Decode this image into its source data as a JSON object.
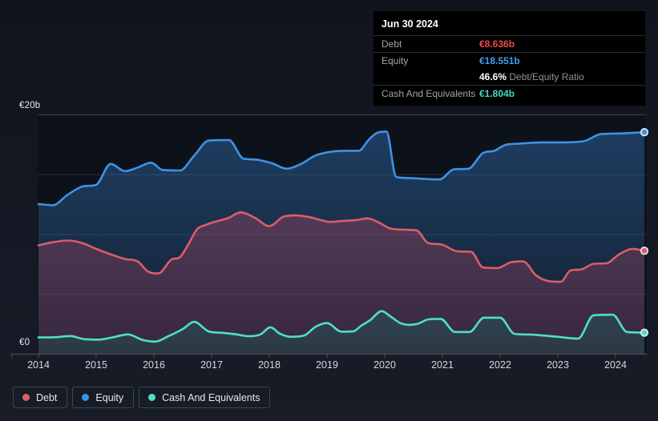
{
  "tooltip": {
    "date": "Jun 30 2024",
    "debt": {
      "label": "Debt",
      "value": "€8.636b"
    },
    "equity": {
      "label": "Equity",
      "value": "€18.551b"
    },
    "ratio": {
      "value": "46.6%",
      "label": "Debt/Equity Ratio"
    },
    "cash": {
      "label": "Cash And Equivalents",
      "value": "€1.804b"
    }
  },
  "axes": {
    "y_ticks": [
      {
        "label": "€20b",
        "value": 20
      },
      {
        "label": "€0",
        "value": 0
      }
    ],
    "x_ticks": [
      "2014",
      "2015",
      "2016",
      "2017",
      "2018",
      "2019",
      "2020",
      "2021",
      "2022",
      "2023",
      "2024"
    ]
  },
  "colors": {
    "page_bg": "#12161f",
    "plot_bg": "#0d121a",
    "grid": "#272e39",
    "grid_top": "#3a424d",
    "axis": "#454d58",
    "tick": "#4a525e",
    "tooltip_bg": "#000000",
    "debt": "#dd5c69",
    "equity": "#3e92e6",
    "cash": "#4fe0c2",
    "debt_value": "#ee4a40",
    "equity_value": "#3f9ff2",
    "cash_value": "#43dcc1",
    "marker_ring": "#e4ecf4"
  },
  "chart_data": {
    "type": "area",
    "title": "Debt to Equity history",
    "unit": "€ billions",
    "xlim": [
      2014,
      2024.5
    ],
    "ylim": [
      0,
      20
    ],
    "grid_values": [
      5,
      10,
      15,
      20
    ],
    "legend_position": "bottom-left",
    "last_point_date": "Jun 30 2024",
    "series": [
      {
        "name": "Debt",
        "color": "#dd5c69",
        "fill_top": "rgba(205,80,110,0.42)",
        "fill_bottom": "rgba(160,60,95,0.25)",
        "points": [
          [
            2014.0,
            9.1
          ],
          [
            2014.25,
            9.35
          ],
          [
            2014.5,
            9.5
          ],
          [
            2014.75,
            9.3
          ],
          [
            2015.0,
            8.8
          ],
          [
            2015.25,
            8.35
          ],
          [
            2015.5,
            7.95
          ],
          [
            2015.72,
            7.75
          ],
          [
            2015.9,
            6.9
          ],
          [
            2016.08,
            6.75
          ],
          [
            2016.3,
            7.9
          ],
          [
            2016.45,
            8.1
          ],
          [
            2016.6,
            9.2
          ],
          [
            2016.75,
            10.45
          ],
          [
            2016.9,
            10.8
          ],
          [
            2017.05,
            11.05
          ],
          [
            2017.3,
            11.4
          ],
          [
            2017.5,
            11.85
          ],
          [
            2017.75,
            11.4
          ],
          [
            2018.0,
            10.7
          ],
          [
            2018.25,
            11.5
          ],
          [
            2018.45,
            11.6
          ],
          [
            2018.7,
            11.45
          ],
          [
            2018.9,
            11.2
          ],
          [
            2019.05,
            11.05
          ],
          [
            2019.3,
            11.15
          ],
          [
            2019.5,
            11.2
          ],
          [
            2019.7,
            11.35
          ],
          [
            2019.9,
            11.0
          ],
          [
            2020.1,
            10.5
          ],
          [
            2020.35,
            10.4
          ],
          [
            2020.55,
            10.35
          ],
          [
            2020.75,
            9.3
          ],
          [
            2021.0,
            9.15
          ],
          [
            2021.25,
            8.6
          ],
          [
            2021.5,
            8.55
          ],
          [
            2021.7,
            7.25
          ],
          [
            2021.95,
            7.2
          ],
          [
            2022.2,
            7.7
          ],
          [
            2022.4,
            7.75
          ],
          [
            2022.62,
            6.6
          ],
          [
            2022.85,
            6.1
          ],
          [
            2023.05,
            6.05
          ],
          [
            2023.22,
            7.0
          ],
          [
            2023.42,
            7.1
          ],
          [
            2023.62,
            7.55
          ],
          [
            2023.85,
            7.6
          ],
          [
            2024.05,
            8.3
          ],
          [
            2024.3,
            8.8
          ],
          [
            2024.5,
            8.64
          ]
        ]
      },
      {
        "name": "Equity",
        "color": "#3e92e6",
        "fill_top": "rgba(58,132,210,0.40)",
        "fill_bottom": "rgba(58,132,210,0.12)",
        "points": [
          [
            2014.0,
            12.55
          ],
          [
            2014.25,
            12.45
          ],
          [
            2014.5,
            13.3
          ],
          [
            2014.75,
            14.0
          ],
          [
            2015.0,
            14.15
          ],
          [
            2015.25,
            15.9
          ],
          [
            2015.5,
            15.3
          ],
          [
            2015.72,
            15.6
          ],
          [
            2015.95,
            16.0
          ],
          [
            2016.15,
            15.4
          ],
          [
            2016.45,
            15.35
          ],
          [
            2016.7,
            16.6
          ],
          [
            2016.95,
            17.85
          ],
          [
            2017.3,
            17.9
          ],
          [
            2017.55,
            16.35
          ],
          [
            2017.8,
            16.25
          ],
          [
            2018.05,
            15.95
          ],
          [
            2018.3,
            15.5
          ],
          [
            2018.55,
            15.9
          ],
          [
            2018.8,
            16.6
          ],
          [
            2019.05,
            16.9
          ],
          [
            2019.3,
            17.0
          ],
          [
            2019.55,
            17.0
          ],
          [
            2019.72,
            17.9
          ],
          [
            2019.87,
            18.5
          ],
          [
            2020.03,
            18.6
          ],
          [
            2020.2,
            14.8
          ],
          [
            2020.5,
            14.7
          ],
          [
            2020.95,
            14.6
          ],
          [
            2021.2,
            15.45
          ],
          [
            2021.45,
            15.5
          ],
          [
            2021.7,
            16.8
          ],
          [
            2021.9,
            17.0
          ],
          [
            2022.1,
            17.5
          ],
          [
            2022.35,
            17.6
          ],
          [
            2022.7,
            17.7
          ],
          [
            2023.1,
            17.7
          ],
          [
            2023.45,
            17.8
          ],
          [
            2023.75,
            18.4
          ],
          [
            2024.1,
            18.45
          ],
          [
            2024.5,
            18.55
          ]
        ]
      },
      {
        "name": "Cash And Equivalents",
        "color": "#4fe0c2",
        "fill_top": "rgba(35,160,140,0.60)",
        "fill_bottom": "rgba(25,90,85,0.35)",
        "points": [
          [
            2014.0,
            1.4
          ],
          [
            2014.3,
            1.42
          ],
          [
            2014.55,
            1.52
          ],
          [
            2014.8,
            1.25
          ],
          [
            2015.05,
            1.22
          ],
          [
            2015.3,
            1.42
          ],
          [
            2015.55,
            1.65
          ],
          [
            2015.8,
            1.2
          ],
          [
            2016.02,
            1.05
          ],
          [
            2016.25,
            1.5
          ],
          [
            2016.5,
            2.1
          ],
          [
            2016.7,
            2.7
          ],
          [
            2016.95,
            1.9
          ],
          [
            2017.2,
            1.78
          ],
          [
            2017.42,
            1.66
          ],
          [
            2017.65,
            1.5
          ],
          [
            2017.85,
            1.66
          ],
          [
            2018.02,
            2.25
          ],
          [
            2018.18,
            1.72
          ],
          [
            2018.38,
            1.45
          ],
          [
            2018.6,
            1.55
          ],
          [
            2018.8,
            2.28
          ],
          [
            2019.0,
            2.6
          ],
          [
            2019.25,
            1.88
          ],
          [
            2019.45,
            1.9
          ],
          [
            2019.6,
            2.4
          ],
          [
            2019.75,
            2.85
          ],
          [
            2019.95,
            3.6
          ],
          [
            2020.1,
            3.15
          ],
          [
            2020.27,
            2.6
          ],
          [
            2020.42,
            2.45
          ],
          [
            2020.58,
            2.55
          ],
          [
            2020.75,
            2.9
          ],
          [
            2020.97,
            2.95
          ],
          [
            2021.22,
            1.85
          ],
          [
            2021.47,
            1.85
          ],
          [
            2021.72,
            3.05
          ],
          [
            2022.0,
            3.05
          ],
          [
            2022.25,
            1.7
          ],
          [
            2022.6,
            1.62
          ],
          [
            2023.0,
            1.45
          ],
          [
            2023.35,
            1.3
          ],
          [
            2023.62,
            3.25
          ],
          [
            2023.95,
            3.3
          ],
          [
            2024.2,
            1.85
          ],
          [
            2024.5,
            1.8
          ]
        ]
      }
    ]
  }
}
